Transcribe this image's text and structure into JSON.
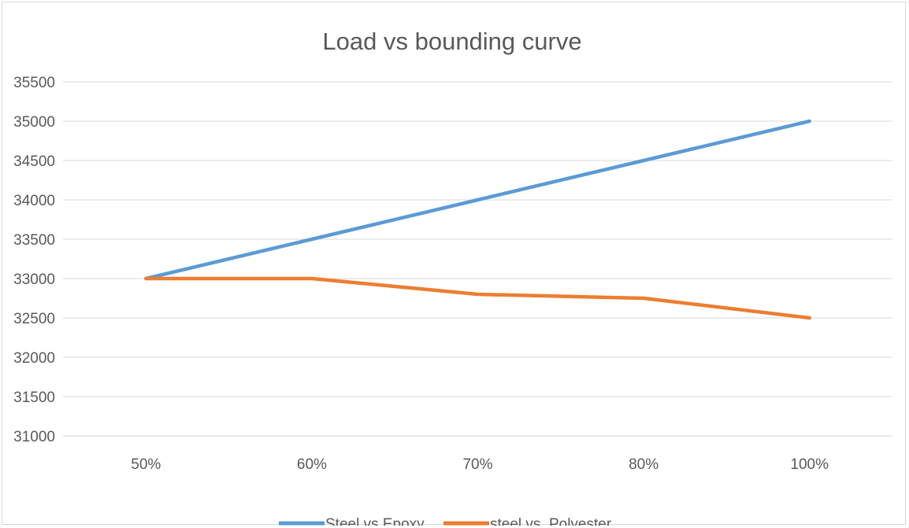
{
  "chart_data": {
    "type": "line",
    "title": "Load vs bounding curve",
    "xlabel": "",
    "ylabel": "",
    "categories": [
      "50%",
      "60%",
      "70%",
      "80%",
      "100%"
    ],
    "series": [
      {
        "name": "Steel vs Epoxy",
        "color": "#5b9bd5",
        "values": [
          33000,
          33500,
          34000,
          34500,
          35000
        ]
      },
      {
        "name": "steel vs. Polyester",
        "color": "#ed7d31",
        "values": [
          33000,
          33000,
          32800,
          32750,
          32500
        ]
      }
    ],
    "ylim": [
      31000,
      35500
    ],
    "yticks": [
      "31000",
      "31500",
      "32000",
      "32500",
      "33000",
      "33500",
      "34000",
      "34500",
      "35000",
      "35500"
    ],
    "grid": true,
    "legend": "bottom"
  }
}
